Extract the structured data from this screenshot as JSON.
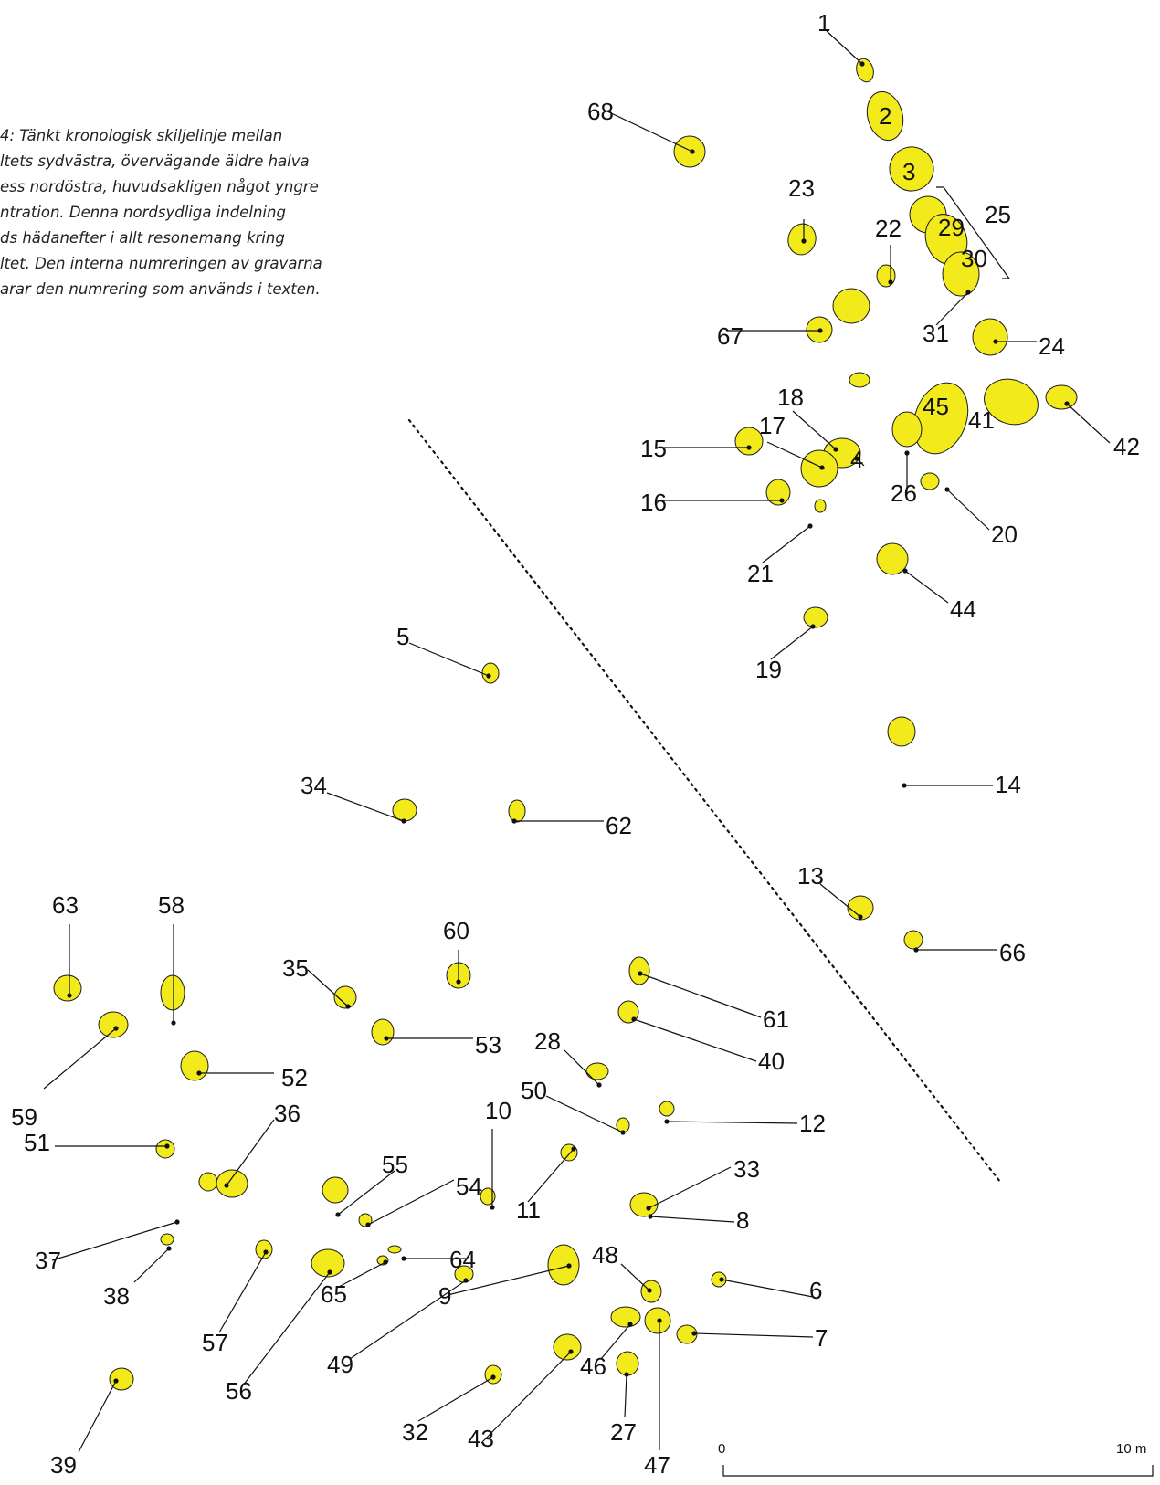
{
  "caption": {
    "lines": [
      "4: Tänkt kronologisk skiljelinje mellan",
      "ltets sydvästra, övervägande äldre halva",
      "ess nordöstra, huvudsakligen något yngre",
      "ntration. Denna nordsydliga indelning",
      "ds hädanefter i allt resonemang kring",
      "ltet. Den interna numreringen av gravarna",
      "arar den numrering som används i texten."
    ]
  },
  "scale": {
    "start_label": "0",
    "end_label": "10 m"
  },
  "colors": {
    "grave_fill": "#f2ea1a",
    "outline": "#1a1a1a"
  },
  "graves": [
    "1",
    "2",
    "3",
    "4",
    "5",
    "6",
    "7",
    "8",
    "9",
    "10",
    "11",
    "12",
    "13",
    "14",
    "15",
    "16",
    "17",
    "18",
    "19",
    "20",
    "21",
    "22",
    "23",
    "24",
    "25",
    "26",
    "27",
    "28",
    "29",
    "30",
    "31",
    "32",
    "33",
    "34",
    "35",
    "36",
    "37",
    "38",
    "39",
    "40",
    "41",
    "42",
    "43",
    "44",
    "45",
    "46",
    "47",
    "48",
    "49",
    "50",
    "51",
    "52",
    "53",
    "54",
    "55",
    "56",
    "57",
    "58",
    "59",
    "60",
    "61",
    "62",
    "63",
    "64",
    "65",
    "66",
    "67",
    "68"
  ]
}
